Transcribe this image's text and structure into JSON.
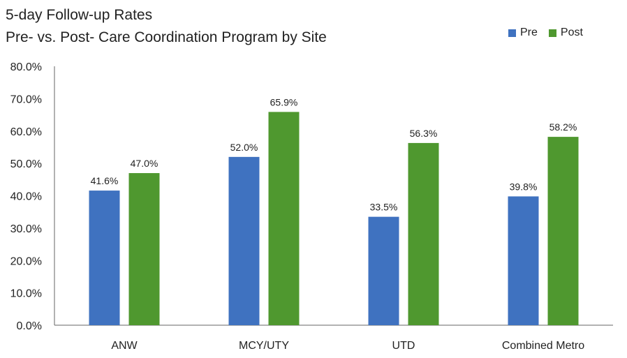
{
  "chart_data": {
    "type": "bar",
    "title": "5-day Follow-up Rates",
    "subtitle": "Pre- vs. Post- Care Coordination Program by Site",
    "categories": [
      "ANW",
      "MCY/UTY",
      "UTD",
      "Combined Metro"
    ],
    "series": [
      {
        "name": "Pre",
        "color": "#3f72c0",
        "values": [
          41.6,
          52.0,
          33.5,
          39.8
        ]
      },
      {
        "name": "Post",
        "color": "#4f982f",
        "values": [
          47.0,
          65.9,
          56.3,
          58.2
        ]
      }
    ],
    "data_labels": [
      [
        "41.6%",
        "52.0%",
        "33.5%",
        "39.8%"
      ],
      [
        "47.0%",
        "65.9%",
        "56.3%",
        "58.2%"
      ]
    ],
    "ylim": [
      0,
      80
    ],
    "yticks": [
      "0.0%",
      "10.0%",
      "20.0%",
      "30.0%",
      "40.0%",
      "50.0%",
      "60.0%",
      "70.0%",
      "80.0%"
    ],
    "xlabel": "",
    "ylabel": "",
    "grid": false,
    "legend": "top-right"
  }
}
